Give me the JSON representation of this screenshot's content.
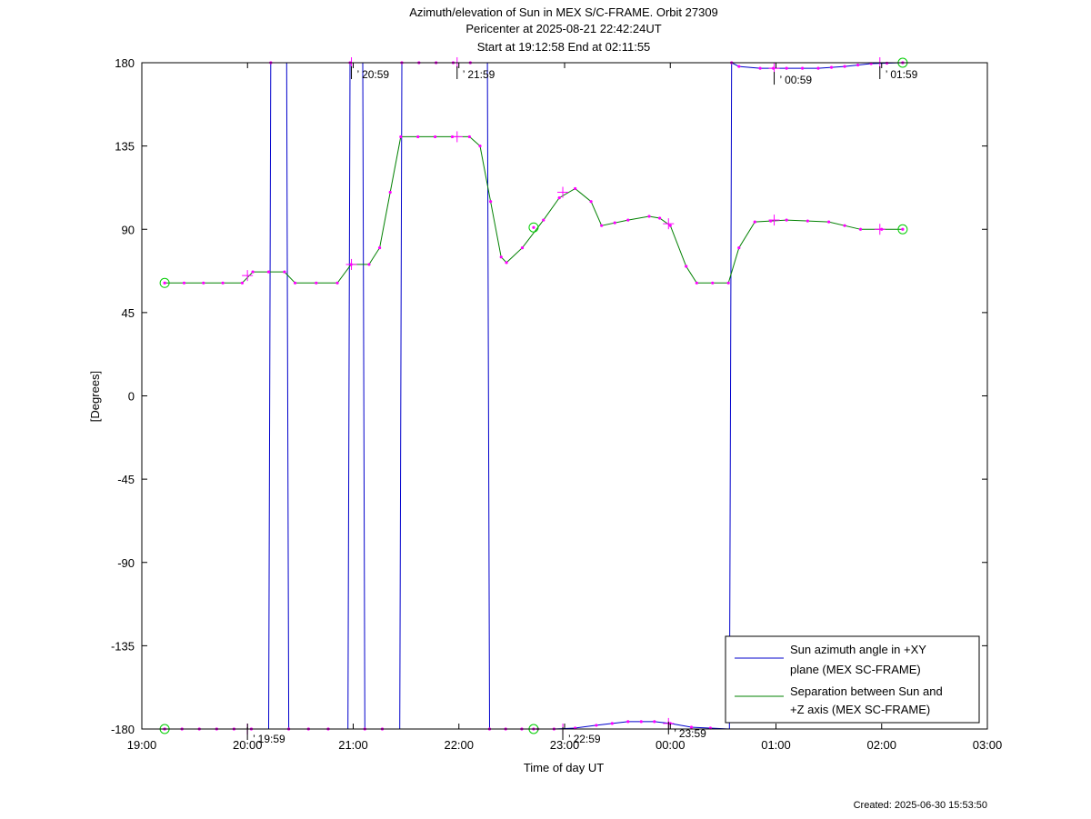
{
  "chart_data": {
    "type": "line",
    "title_lines": [
      "Azimuth/elevation of Sun in MEX S/C-FRAME.  Orbit 27309",
      "Pericenter at 2025-08-21 22:42:24UT",
      "Start at 19:12:58 End at 02:11:55"
    ],
    "xlabel": "Time of day UT",
    "ylabel": "[Degrees]",
    "created": "Created: 2025-06-30 15:53:50",
    "xlim": [
      19.0,
      27.0
    ],
    "ylim": [
      -180,
      180
    ],
    "x_ticks": [
      {
        "x": 19.0,
        "label": "19:00"
      },
      {
        "x": 20.0,
        "label": "20:00"
      },
      {
        "x": 21.0,
        "label": "21:00"
      },
      {
        "x": 22.0,
        "label": "22:00"
      },
      {
        "x": 23.0,
        "label": "23:00"
      },
      {
        "x": 24.0,
        "label": "00:00"
      },
      {
        "x": 25.0,
        "label": "01:00"
      },
      {
        "x": 26.0,
        "label": "02:00"
      },
      {
        "x": 27.0,
        "label": "03:00"
      }
    ],
    "y_ticks": [
      {
        "y": 180,
        "label": "180"
      },
      {
        "y": 135,
        "label": "135"
      },
      {
        "y": 90,
        "label": "90"
      },
      {
        "y": 45,
        "label": "45"
      },
      {
        "y": 0,
        "label": "0"
      },
      {
        "y": -45,
        "label": "-45"
      },
      {
        "y": -90,
        "label": "-90"
      },
      {
        "y": -135,
        "label": "-135"
      },
      {
        "y": -180,
        "label": "-180"
      }
    ],
    "grid": false,
    "legend_position": "bottom-right",
    "series": [
      {
        "name": "Sun azimuth angle in +XY plane (MEX SC-FRAME)",
        "legend_lines": [
          "Sun azimuth angle in +XY",
          "plane (MEX SC-FRAME)"
        ],
        "color": "#0000cc",
        "points": [
          [
            19.216,
            -180
          ],
          [
            20.2,
            -180
          ],
          [
            20.22,
            180
          ],
          [
            20.37,
            180
          ],
          [
            20.39,
            -180
          ],
          [
            20.95,
            -180
          ],
          [
            20.97,
            180
          ],
          [
            21.09,
            180
          ],
          [
            21.11,
            -180
          ],
          [
            21.44,
            -180
          ],
          [
            21.46,
            180
          ],
          [
            22.27,
            180
          ],
          [
            22.29,
            -180
          ],
          [
            22.9,
            -180
          ],
          [
            23.1,
            -179.5
          ],
          [
            23.3,
            -178
          ],
          [
            23.6,
            -176
          ],
          [
            23.85,
            -176
          ],
          [
            24.0,
            -177
          ],
          [
            24.2,
            -179
          ],
          [
            24.56,
            -180
          ],
          [
            24.58,
            180
          ],
          [
            24.65,
            178
          ],
          [
            24.85,
            177
          ],
          [
            25.1,
            177
          ],
          [
            25.4,
            177
          ],
          [
            25.65,
            178
          ],
          [
            25.9,
            179.5
          ],
          [
            26.199,
            180
          ]
        ],
        "markers": [
          {
            "t": 19.216,
            "v": -180,
            "kind": "circle"
          },
          {
            "t": 19.999,
            "v": -180,
            "kind": "cross",
            "label": "19:59"
          },
          {
            "t": 20.983,
            "v": 180,
            "kind": "cross",
            "label": "20:59"
          },
          {
            "t": 21.983,
            "v": 180,
            "kind": "cross",
            "label": "21:59"
          },
          {
            "t": 22.707,
            "v": -180,
            "kind": "circle"
          },
          {
            "t": 22.983,
            "v": -180,
            "kind": "cross",
            "label": "22:59"
          },
          {
            "t": 23.983,
            "v": -177,
            "kind": "cross",
            "label": "23:59"
          },
          {
            "t": 24.983,
            "v": 177,
            "kind": "cross",
            "label": "00:59"
          },
          {
            "t": 25.983,
            "v": 180,
            "kind": "cross",
            "label": "01:59"
          },
          {
            "t": 26.199,
            "v": 180,
            "kind": "circle"
          }
        ]
      },
      {
        "name": "Separation between Sun and +Z axis (MEX SC-FRAME)",
        "legend_lines": [
          "Separation between Sun and",
          "+Z axis (MEX SC-FRAME)"
        ],
        "color": "#008000",
        "points": [
          [
            19.216,
            61
          ],
          [
            19.95,
            61
          ],
          [
            20.05,
            67
          ],
          [
            20.35,
            67
          ],
          [
            20.45,
            61
          ],
          [
            20.85,
            61
          ],
          [
            20.98,
            71
          ],
          [
            21.15,
            71
          ],
          [
            21.25,
            80
          ],
          [
            21.35,
            110
          ],
          [
            21.45,
            140
          ],
          [
            22.1,
            140
          ],
          [
            22.2,
            135
          ],
          [
            22.3,
            105
          ],
          [
            22.4,
            75
          ],
          [
            22.45,
            72
          ],
          [
            22.6,
            80
          ],
          [
            22.8,
            95
          ],
          [
            22.95,
            107
          ],
          [
            23.1,
            112
          ],
          [
            23.25,
            105
          ],
          [
            23.35,
            92
          ],
          [
            23.6,
            95
          ],
          [
            23.8,
            97
          ],
          [
            23.9,
            96
          ],
          [
            24.0,
            92
          ],
          [
            24.15,
            70
          ],
          [
            24.25,
            61
          ],
          [
            24.55,
            61
          ],
          [
            24.65,
            80
          ],
          [
            24.8,
            94
          ],
          [
            25.1,
            95
          ],
          [
            25.5,
            94
          ],
          [
            25.8,
            90
          ],
          [
            26.0,
            90
          ],
          [
            26.199,
            90
          ]
        ],
        "markers": [
          {
            "t": 19.216,
            "v": 61,
            "kind": "circle"
          },
          {
            "t": 19.999,
            "v": 65,
            "kind": "cross"
          },
          {
            "t": 20.983,
            "v": 71,
            "kind": "cross"
          },
          {
            "t": 21.983,
            "v": 140,
            "kind": "cross"
          },
          {
            "t": 22.707,
            "v": 91,
            "kind": "circle"
          },
          {
            "t": 22.983,
            "v": 110,
            "kind": "cross"
          },
          {
            "t": 23.983,
            "v": 93,
            "kind": "cross"
          },
          {
            "t": 24.983,
            "v": 95,
            "kind": "cross"
          },
          {
            "t": 25.983,
            "v": 90,
            "kind": "cross"
          },
          {
            "t": 26.199,
            "v": 90,
            "kind": "circle"
          }
        ]
      }
    ],
    "marker_color": "#ff00ff"
  }
}
